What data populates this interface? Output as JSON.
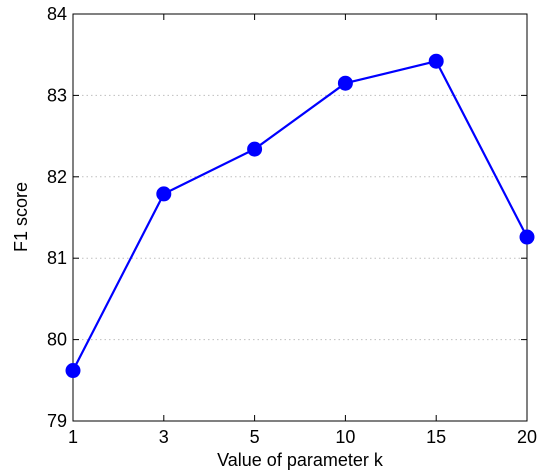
{
  "chart_data": {
    "type": "line",
    "title": "",
    "xlabel": "Value of parameter k",
    "ylabel": "F1 score",
    "categories": [
      "1",
      "3",
      "5",
      "10",
      "15",
      "20"
    ],
    "series": [
      {
        "values": [
          79.62,
          81.79,
          82.34,
          83.15,
          83.42,
          81.26
        ]
      }
    ],
    "ylim": [
      79,
      84
    ],
    "yticks": [
      "79",
      "80",
      "81",
      "82",
      "83",
      "84"
    ],
    "grid": "horizontal dotted",
    "legend": "none",
    "colors": {
      "line": "#0000ff",
      "marker": "#0000ff",
      "grid": "#bfbfbf",
      "axes": "#000000"
    }
  }
}
